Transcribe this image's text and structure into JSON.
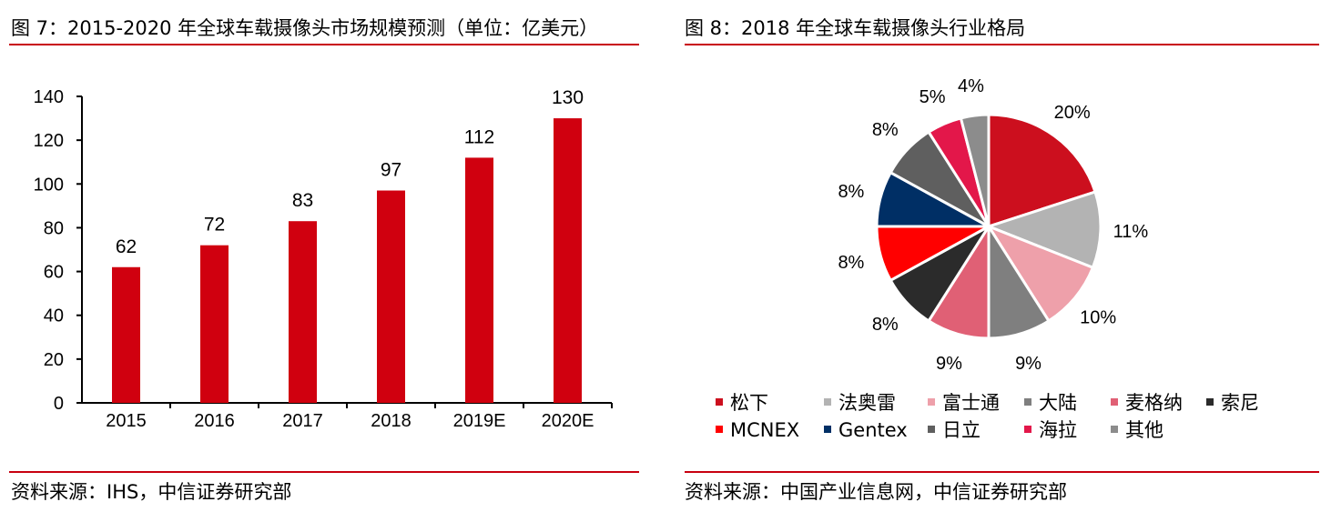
{
  "left_panel": {
    "title": "图 7：2015-2020 年全球车载摄像头市场规模预测（单位：亿美元）",
    "source": "资料来源：IHS，中信证券研究部"
  },
  "right_panel": {
    "title": "图 8：2018 年全球车载摄像头行业格局",
    "source": "资料来源：中国产业信息网，中信证券研究部"
  },
  "colors": {
    "accent_rule": "#c8000f",
    "bar": "#d0000f"
  },
  "chart_data": [
    {
      "type": "bar",
      "categories": [
        "2015",
        "2016",
        "2017",
        "2018",
        "2019E",
        "2020E"
      ],
      "values": [
        62,
        72,
        83,
        97,
        112,
        130
      ],
      "data_labels": [
        "62",
        "72",
        "83",
        "97",
        "112",
        "130"
      ],
      "yticks": [
        "0",
        "20",
        "40",
        "60",
        "80",
        "100",
        "120",
        "140"
      ],
      "ylim": [
        0,
        140
      ],
      "title": "",
      "xlabel": "",
      "ylabel": "",
      "grid": false,
      "legend": "none"
    },
    {
      "type": "pie",
      "start": "top, clockwise",
      "legend_position": "bottom",
      "slices": [
        {
          "name": "松下",
          "value": 20,
          "label": "20%",
          "color": "#cc0f1e"
        },
        {
          "name": "法奥雷",
          "value": 11,
          "label": "11%",
          "color": "#b3b3b3"
        },
        {
          "name": "富士通",
          "value": 10,
          "label": "10%",
          "color": "#eea0aa"
        },
        {
          "name": "大陆",
          "value": 9,
          "label": "9%",
          "color": "#7f7f7f"
        },
        {
          "name": "麦格纳",
          "value": 9,
          "label": "9%",
          "color": "#e06075"
        },
        {
          "name": "索尼",
          "value": 8,
          "label": "8%",
          "color": "#2b2b2b"
        },
        {
          "name": "MCNEX",
          "value": 8,
          "label": "8%",
          "color": "#ff0000"
        },
        {
          "name": "Gentex",
          "value": 8,
          "label": "8%",
          "color": "#002f65"
        },
        {
          "name": "日立",
          "value": 8,
          "label": "8%",
          "color": "#5f5f5f"
        },
        {
          "name": "海拉",
          "value": 5,
          "label": "5%",
          "color": "#e3174a"
        },
        {
          "name": "其他",
          "value": 4,
          "label": "4%",
          "color": "#8c8c8c"
        }
      ]
    }
  ]
}
